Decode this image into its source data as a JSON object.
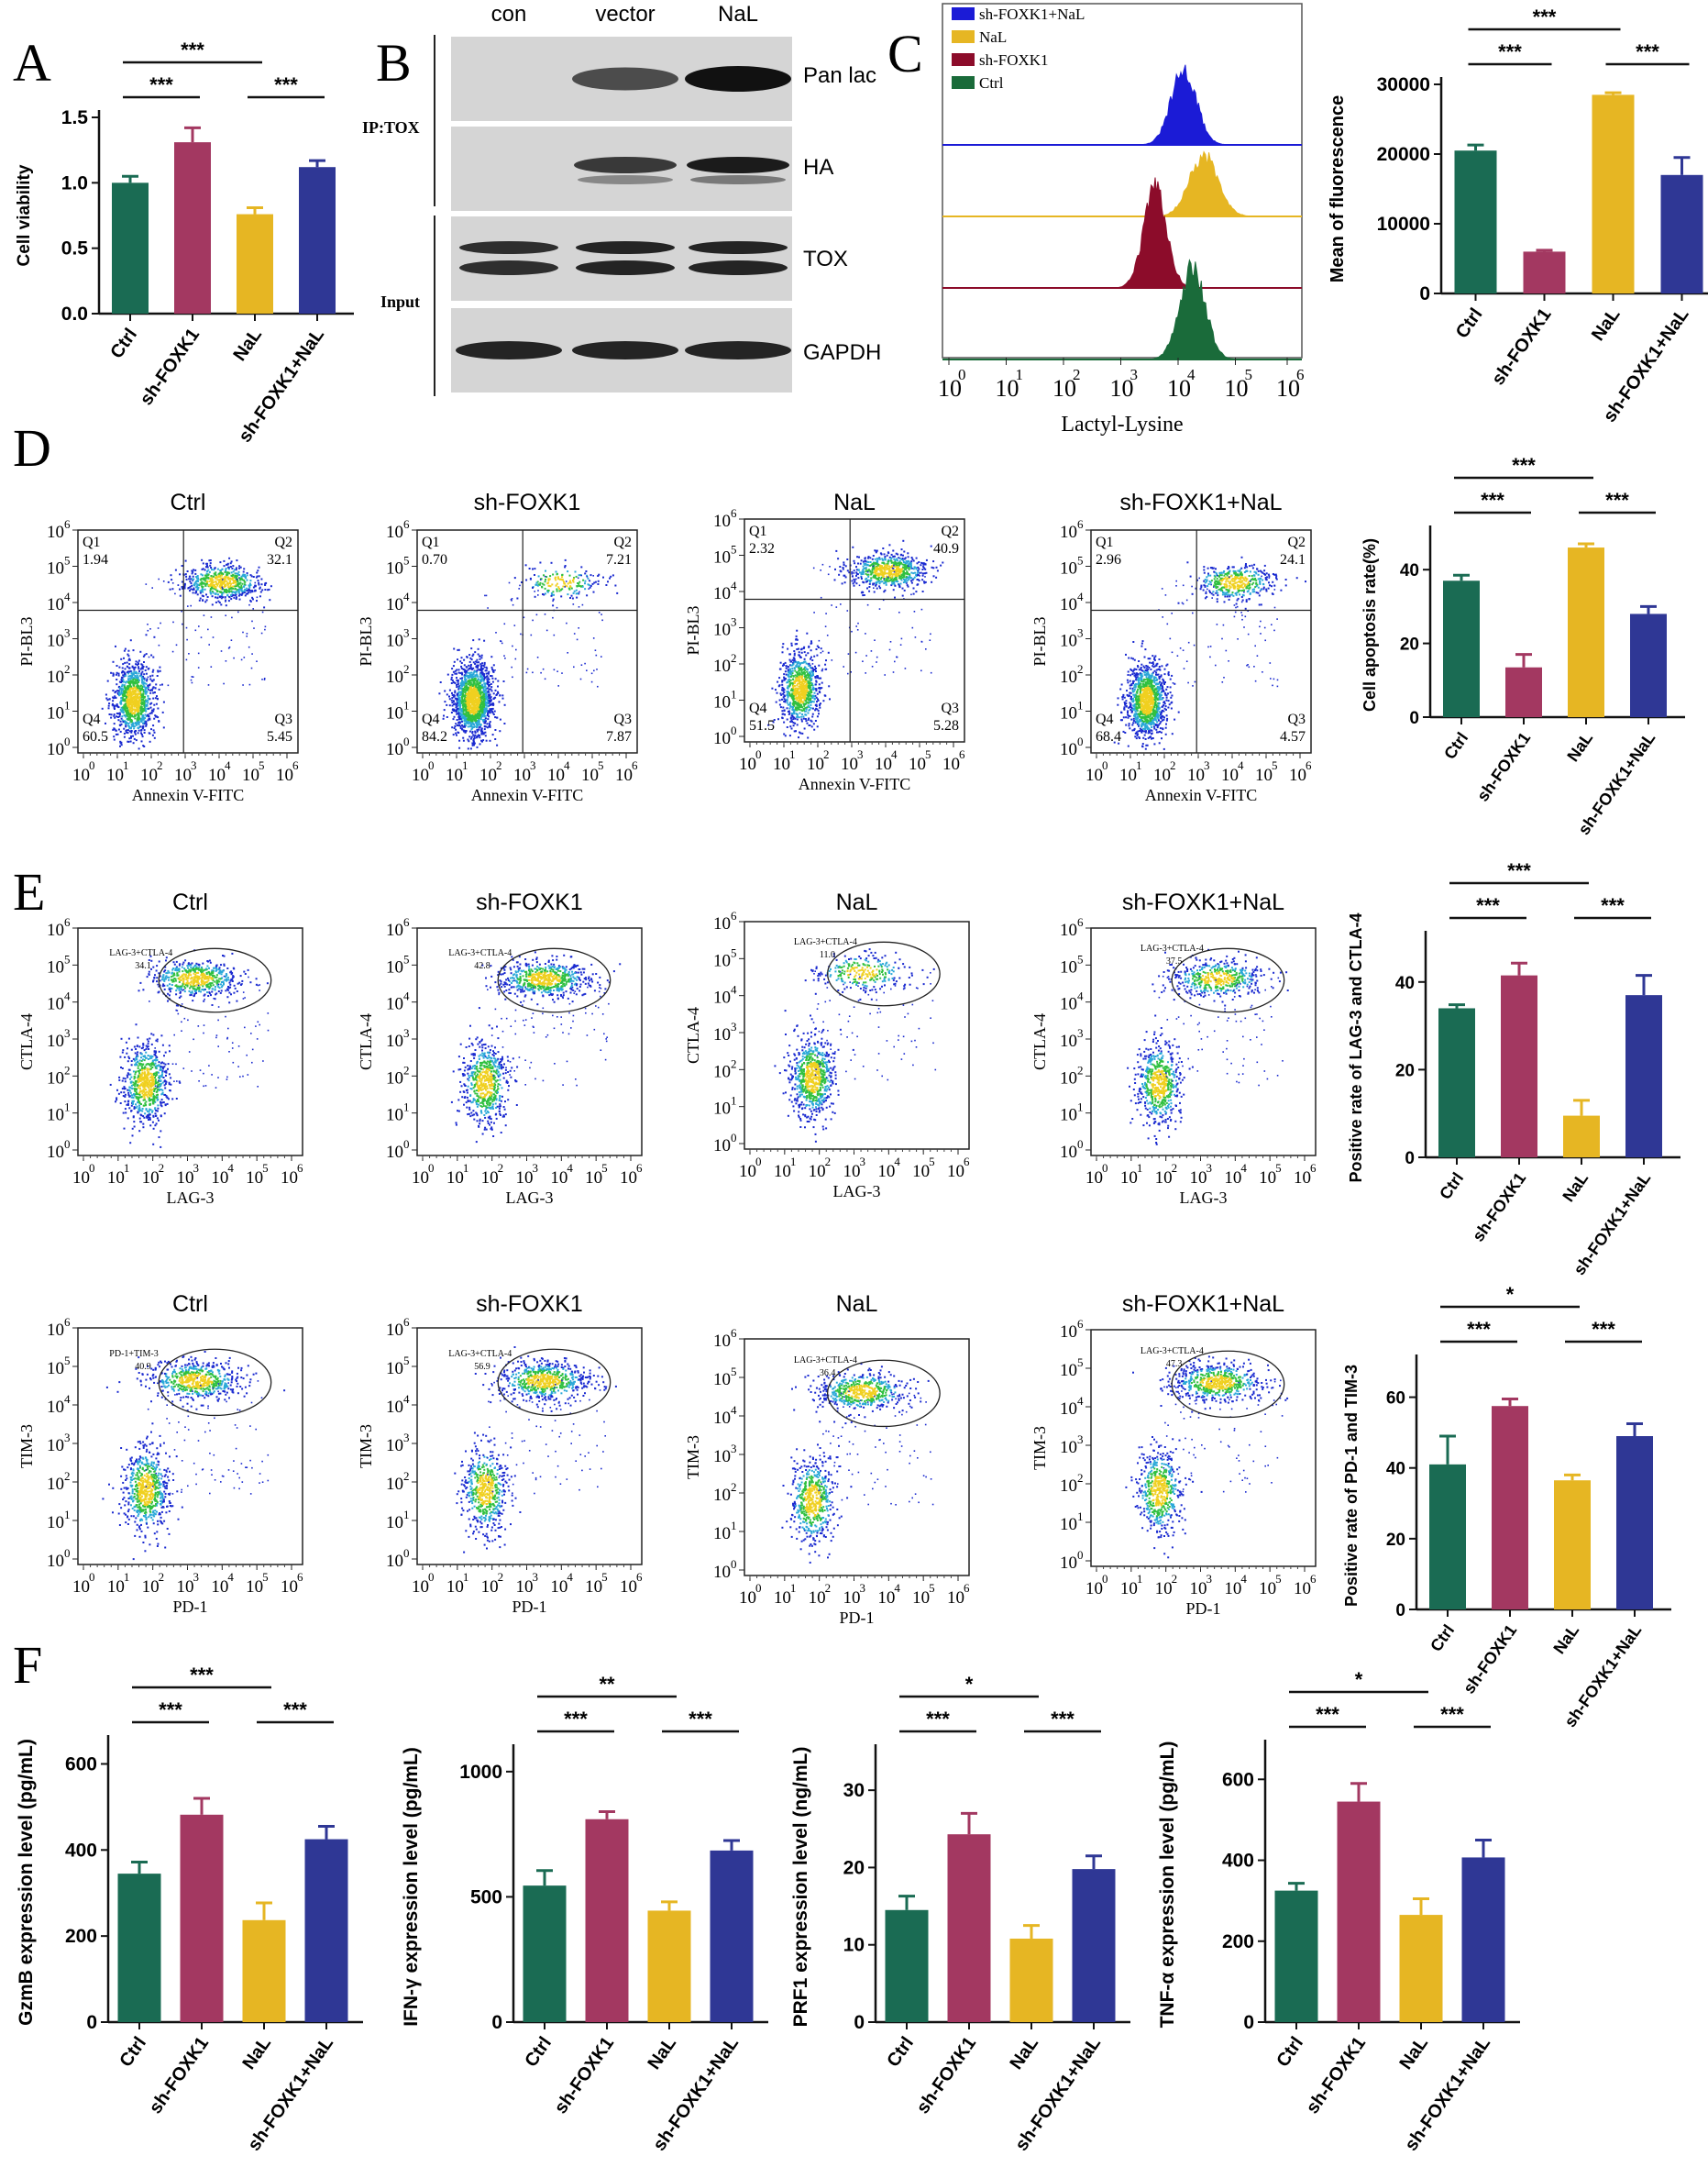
{
  "figure": {
    "panel_letters": [
      "A",
      "B",
      "C",
      "D",
      "E",
      "F"
    ],
    "colors": {
      "Ctrl": "#1a6b53",
      "sh-FOXK1": "#a33861",
      "NaL": "#e6b623",
      "sh-FOXK1+NaL": "#2f3795"
    }
  },
  "blot": {
    "lanes": [
      "con",
      "vector",
      "NaL"
    ],
    "ip_label": "IP:TOX",
    "input_label": "Input",
    "rows": [
      {
        "label": "Pan lac",
        "intensity": [
          0.0,
          0.7,
          1.0
        ]
      },
      {
        "label": "HA",
        "intensity": [
          0.0,
          0.8,
          0.95
        ]
      },
      {
        "label": "TOX",
        "intensity": [
          0.85,
          0.9,
          0.9
        ]
      },
      {
        "label": "GAPDH",
        "intensity": [
          0.9,
          0.9,
          0.9
        ]
      }
    ]
  },
  "histogram": {
    "legend": [
      "sh-FOXK1+NaL",
      "NaL",
      "sh-FOXK1",
      "Ctrl"
    ],
    "tracks": [
      {
        "name": "sh-FOXK1+NaL",
        "color": "#1b1bd6",
        "peak_log": 4.1,
        "width": 0.22
      },
      {
        "name": "NaL",
        "color": "#e6b623",
        "peak_log": 4.45,
        "width": 0.25
      },
      {
        "name": "sh-FOXK1",
        "color": "#8c0c2a",
        "peak_log": 3.6,
        "width": 0.2
      },
      {
        "name": "Ctrl",
        "color": "#1a6b3a",
        "peak_log": 4.25,
        "width": 0.22
      }
    ],
    "xticks": [
      "0",
      "1",
      "2",
      "3",
      "4",
      "5",
      "6"
    ],
    "xlabel": "Lactyl-Lysine"
  },
  "d_labels": {
    "xlabel": "Annexin V-FITC",
    "ylabel": "PI-BL3"
  },
  "e_labels": {
    "x1": "LAG-3",
    "y1": "CTLA-4",
    "x2": "PD-1",
    "y2": "TIM-3"
  },
  "scatter_panels": [
    {
      "row": "D",
      "title": "Ctrl",
      "quadrants": {
        "Q1": "1.94",
        "Q2": "32.1",
        "Q3": "5.45",
        "Q4": "60.5"
      }
    },
    {
      "row": "D",
      "title": "sh-FOXK1",
      "quadrants": {
        "Q1": "0.70",
        "Q2": "7.21",
        "Q3": "7.87",
        "Q4": "84.2"
      }
    },
    {
      "row": "D",
      "title": "NaL",
      "quadrants": {
        "Q1": "2.32",
        "Q2": "40.9",
        "Q3": "5.28",
        "Q4": "51.5"
      }
    },
    {
      "row": "D",
      "title": "sh-FOXK1+NaL",
      "quadrants": {
        "Q1": "2.96",
        "Q2": "24.1",
        "Q3": "4.57",
        "Q4": "68.4"
      }
    },
    {
      "row": "E1",
      "title": "Ctrl",
      "gate_label": "LAG-3+CTLA-4",
      "gate_value": "34.1"
    },
    {
      "row": "E1",
      "title": "sh-FOXK1",
      "gate_label": "LAG-3+CTLA-4",
      "gate_value": "42.8"
    },
    {
      "row": "E1",
      "title": "NaL",
      "gate_label": "LAG-3+CTLA-4",
      "gate_value": "11.0"
    },
    {
      "row": "E1",
      "title": "sh-FOXK1+NaL",
      "gate_label": "LAG-3+CTLA-4",
      "gate_value": "37.5"
    },
    {
      "row": "E2",
      "title": "Ctrl",
      "gate_label": "PD-1+TIM-3",
      "gate_value": "40.9"
    },
    {
      "row": "E2",
      "title": "sh-FOXK1",
      "gate_label": "LAG-3+CTLA-4",
      "gate_value": "56.9"
    },
    {
      "row": "E2",
      "title": "NaL",
      "gate_label": "LAG-3+CTLA-4",
      "gate_value": "36.4"
    },
    {
      "row": "E2",
      "title": "sh-FOXK1+NaL",
      "gate_label": "LAG-3+CTLA-4",
      "gate_value": "47.3"
    }
  ],
  "chart_data": [
    {
      "id": "A",
      "type": "bar",
      "categories": [
        "Ctrl",
        "sh-FOXK1",
        "NaL",
        "sh-FOXK1+NaL"
      ],
      "values": [
        1.0,
        1.31,
        0.76,
        1.12
      ],
      "errors": [
        0.05,
        0.11,
        0.05,
        0.05
      ],
      "ylabel": "Cell viability",
      "ylim": [
        0,
        1.5
      ],
      "yticks": [
        0.0,
        0.5,
        1.0,
        1.5
      ],
      "ytick_labels": [
        "0.0",
        "0.5",
        "1.0",
        "1.5"
      ],
      "significance": [
        {
          "a": 0,
          "b": 2,
          "label": "***"
        },
        {
          "a": 0,
          "b": 1,
          "label": "***"
        },
        {
          "a": 2,
          "b": 3,
          "label": "***"
        }
      ]
    },
    {
      "id": "C",
      "type": "bar",
      "categories": [
        "Ctrl",
        "sh-FOXK1",
        "NaL",
        "sh-FOXK1+NaL"
      ],
      "values": [
        20500,
        6000,
        28500,
        17000
      ],
      "errors": [
        800,
        200,
        300,
        2500
      ],
      "ylabel": "Mean of fluorescence",
      "ylim": [
        0,
        30000
      ],
      "yticks": [
        0,
        10000,
        20000,
        30000
      ],
      "ytick_labels": [
        "0",
        "10000",
        "20000",
        "30000"
      ],
      "significance": [
        {
          "a": 0,
          "b": 2,
          "label": "***"
        },
        {
          "a": 2,
          "b": 3,
          "label": "***"
        },
        {
          "a": 0,
          "b": 1,
          "label": "***"
        }
      ]
    },
    {
      "id": "D",
      "type": "bar",
      "categories": [
        "Ctrl",
        "sh-FOXK1",
        "NaL",
        "sh-FOXK1+NaL"
      ],
      "values": [
        37,
        13.5,
        46,
        28
      ],
      "errors": [
        1.5,
        3.5,
        1,
        2
      ],
      "ylabel": "Cell apoptosis rate(%)",
      "ylim": [
        0,
        50
      ],
      "yticks": [
        0,
        20,
        40
      ],
      "ytick_labels": [
        "0",
        "20",
        "40"
      ],
      "significance": [
        {
          "a": 0,
          "b": 2,
          "label": "***"
        },
        {
          "a": 0,
          "b": 1,
          "label": "***"
        },
        {
          "a": 2,
          "b": 3,
          "label": "***"
        }
      ]
    },
    {
      "id": "E1",
      "type": "bar",
      "categories": [
        "Ctrl",
        "sh-FOXK1",
        "NaL",
        "sh-FOXK1+NaL"
      ],
      "values": [
        34,
        41.5,
        9.5,
        37
      ],
      "errors": [
        0.8,
        2.8,
        3.5,
        4.5
      ],
      "ylabel": "Positive rate of LAG-3 and CTLA-4",
      "ylim": [
        0,
        50
      ],
      "yticks": [
        0,
        20,
        40
      ],
      "ytick_labels": [
        "0",
        "20",
        "40"
      ],
      "significance": [
        {
          "a": 0,
          "b": 2,
          "label": "***"
        },
        {
          "a": 0,
          "b": 1,
          "label": "***"
        },
        {
          "a": 2,
          "b": 3,
          "label": "***"
        }
      ]
    },
    {
      "id": "E2",
      "type": "bar",
      "categories": [
        "Ctrl",
        "sh-FOXK1",
        "NaL",
        "sh-FOXK1+NaL"
      ],
      "values": [
        41,
        57.5,
        36.5,
        49
      ],
      "errors": [
        8,
        2,
        1.5,
        3.5
      ],
      "ylabel": "Positive rate of PD-1 and TIM-3",
      "ylim": [
        0,
        70
      ],
      "yticks": [
        0,
        20,
        40,
        60
      ],
      "ytick_labels": [
        "0",
        "20",
        "40",
        "60"
      ],
      "significance": [
        {
          "a": 0,
          "b": 2,
          "label": "*"
        },
        {
          "a": 0,
          "b": 1,
          "label": "***"
        },
        {
          "a": 2,
          "b": 3,
          "label": "***"
        }
      ]
    },
    {
      "id": "F1",
      "type": "bar",
      "categories": [
        "Ctrl",
        "sh-FOXK1",
        "NaL",
        "sh-FOXK1+NaL"
      ],
      "values": [
        345,
        482,
        237,
        425
      ],
      "errors": [
        27,
        38,
        40,
        30
      ],
      "ylabel": "GzmB expression level (pg/mL)",
      "ylim": [
        0,
        650
      ],
      "yticks": [
        0,
        200,
        400,
        600
      ],
      "ytick_labels": [
        "0",
        "200",
        "400",
        "600"
      ],
      "significance": [
        {
          "a": 0,
          "b": 2,
          "label": "***"
        },
        {
          "a": 0,
          "b": 1,
          "label": "***"
        },
        {
          "a": 2,
          "b": 3,
          "label": "***"
        }
      ]
    },
    {
      "id": "F2",
      "type": "bar",
      "categories": [
        "Ctrl",
        "sh-FOXK1",
        "NaL",
        "sh-FOXK1+NaL"
      ],
      "values": [
        545,
        810,
        445,
        685
      ],
      "errors": [
        60,
        30,
        35,
        40
      ],
      "ylabel": "IFN-γ expression level (pg/mL)",
      "ylim": [
        0,
        1080
      ],
      "yticks": [
        0,
        500,
        1000
      ],
      "ytick_labels": [
        "0",
        "500",
        "1000"
      ],
      "significance": [
        {
          "a": 0,
          "b": 2,
          "label": "**"
        },
        {
          "a": 0,
          "b": 1,
          "label": "***"
        },
        {
          "a": 2,
          "b": 3,
          "label": "***"
        }
      ]
    },
    {
      "id": "F3",
      "type": "bar",
      "categories": [
        "Ctrl",
        "sh-FOXK1",
        "NaL",
        "sh-FOXK1+NaL"
      ],
      "values": [
        14.5,
        24.3,
        10.8,
        19.8
      ],
      "errors": [
        1.8,
        2.7,
        1.7,
        1.7
      ],
      "ylabel": "PRF1 expression level (ng/mL)",
      "ylim": [
        0,
        35
      ],
      "yticks": [
        0,
        10,
        20,
        30
      ],
      "ytick_labels": [
        "0",
        "10",
        "20",
        "30"
      ],
      "significance": [
        {
          "a": 0,
          "b": 2,
          "label": "*"
        },
        {
          "a": 0,
          "b": 1,
          "label": "***"
        },
        {
          "a": 2,
          "b": 3,
          "label": "***"
        }
      ]
    },
    {
      "id": "F4",
      "type": "bar",
      "categories": [
        "Ctrl",
        "sh-FOXK1",
        "NaL",
        "sh-FOXK1+NaL"
      ],
      "values": [
        325,
        545,
        265,
        407
      ],
      "errors": [
        18,
        45,
        40,
        43
      ],
      "ylabel": "TNF-α expression level (pg/mL)",
      "ylim": [
        0,
        680
      ],
      "yticks": [
        0,
        200,
        400,
        600
      ],
      "ytick_labels": [
        "0",
        "200",
        "400",
        "600"
      ],
      "significance": [
        {
          "a": 0,
          "b": 2,
          "label": "*"
        },
        {
          "a": 0,
          "b": 1,
          "label": "***"
        },
        {
          "a": 2,
          "b": 3,
          "label": "***"
        }
      ]
    }
  ]
}
